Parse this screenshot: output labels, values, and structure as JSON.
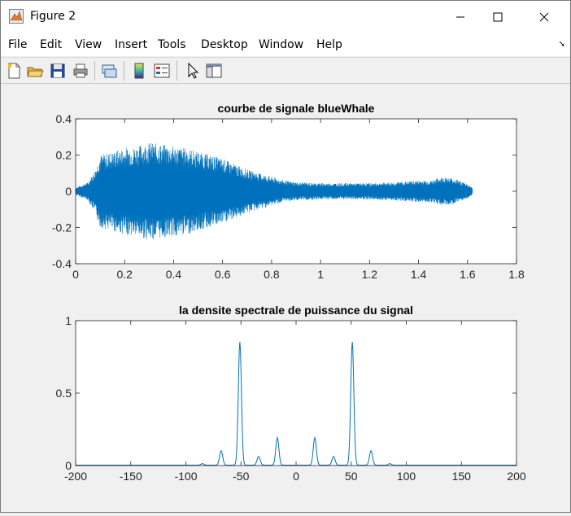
{
  "window": {
    "title": "Figure 2",
    "minimize_glyph": "─",
    "maximize_glyph": "☐",
    "close_glyph": "✕"
  },
  "menubar": {
    "items": [
      "File",
      "Edit",
      "View",
      "Insert",
      "Tools",
      "Desktop",
      "Window",
      "Help"
    ],
    "dock_glyph": "➘"
  },
  "toolbar": {
    "icons": [
      "new-figure-icon",
      "open-file-icon",
      "save-icon",
      "print-icon",
      "link-plot-icon",
      "insert-colorbar-icon",
      "insert-legend-icon",
      "edit-plot-arrow-icon",
      "show-plot-tools-icon"
    ]
  },
  "colors": {
    "line": "#0072bd",
    "axes_bg": "#ffffff",
    "figure_bg": "#f0f0f0"
  },
  "chart_data": [
    {
      "type": "line",
      "title": "courbe de signale blueWhale",
      "xlabel": "",
      "ylabel": "",
      "xlim": [
        0,
        1.8
      ],
      "ylim": [
        -0.4,
        0.4
      ],
      "xticks": [
        "0",
        "0.2",
        "0.4",
        "0.6",
        "0.8",
        "1",
        "1.2",
        "1.4",
        "1.6",
        "1.8"
      ],
      "yticks": [
        "-0.4",
        "-0.2",
        "0",
        "0.2",
        "0.4"
      ],
      "signal_end": 1.62,
      "envelope": [
        [
          0.0,
          0.02
        ],
        [
          0.05,
          0.05
        ],
        [
          0.08,
          0.12
        ],
        [
          0.1,
          0.2
        ],
        [
          0.15,
          0.22
        ],
        [
          0.2,
          0.24
        ],
        [
          0.25,
          0.25
        ],
        [
          0.3,
          0.27
        ],
        [
          0.35,
          0.26
        ],
        [
          0.4,
          0.25
        ],
        [
          0.45,
          0.24
        ],
        [
          0.5,
          0.22
        ],
        [
          0.55,
          0.2
        ],
        [
          0.6,
          0.18
        ],
        [
          0.65,
          0.15
        ],
        [
          0.7,
          0.12
        ],
        [
          0.75,
          0.1
        ],
        [
          0.8,
          0.08
        ],
        [
          0.85,
          0.06
        ],
        [
          0.9,
          0.05
        ],
        [
          1.0,
          0.045
        ],
        [
          1.1,
          0.045
        ],
        [
          1.2,
          0.045
        ],
        [
          1.3,
          0.05
        ],
        [
          1.4,
          0.06
        ],
        [
          1.45,
          0.06
        ],
        [
          1.5,
          0.08
        ],
        [
          1.55,
          0.07
        ],
        [
          1.6,
          0.04
        ],
        [
          1.62,
          0.02
        ]
      ],
      "grid": false
    },
    {
      "type": "line",
      "title": "la densite spectrale de puissance du signal",
      "xlabel": "",
      "ylabel": "",
      "xlim": [
        -200,
        200
      ],
      "ylim": [
        0,
        1
      ],
      "xticks": [
        "-200",
        "-150",
        "-100",
        "-50",
        "0",
        "50",
        "100",
        "150",
        "200"
      ],
      "yticks": [
        "0",
        "0.5",
        "1"
      ],
      "peaks": [
        {
          "x": -68,
          "y": 0.1
        },
        {
          "x": -51,
          "y": 0.85
        },
        {
          "x": -34,
          "y": 0.06
        },
        {
          "x": -17,
          "y": 0.19
        },
        {
          "x": 17,
          "y": 0.19
        },
        {
          "x": 34,
          "y": 0.06
        },
        {
          "x": 51,
          "y": 0.85
        },
        {
          "x": 68,
          "y": 0.1
        },
        {
          "x": -85,
          "y": 0.01
        },
        {
          "x": 85,
          "y": 0.01
        }
      ],
      "grid": false
    }
  ]
}
